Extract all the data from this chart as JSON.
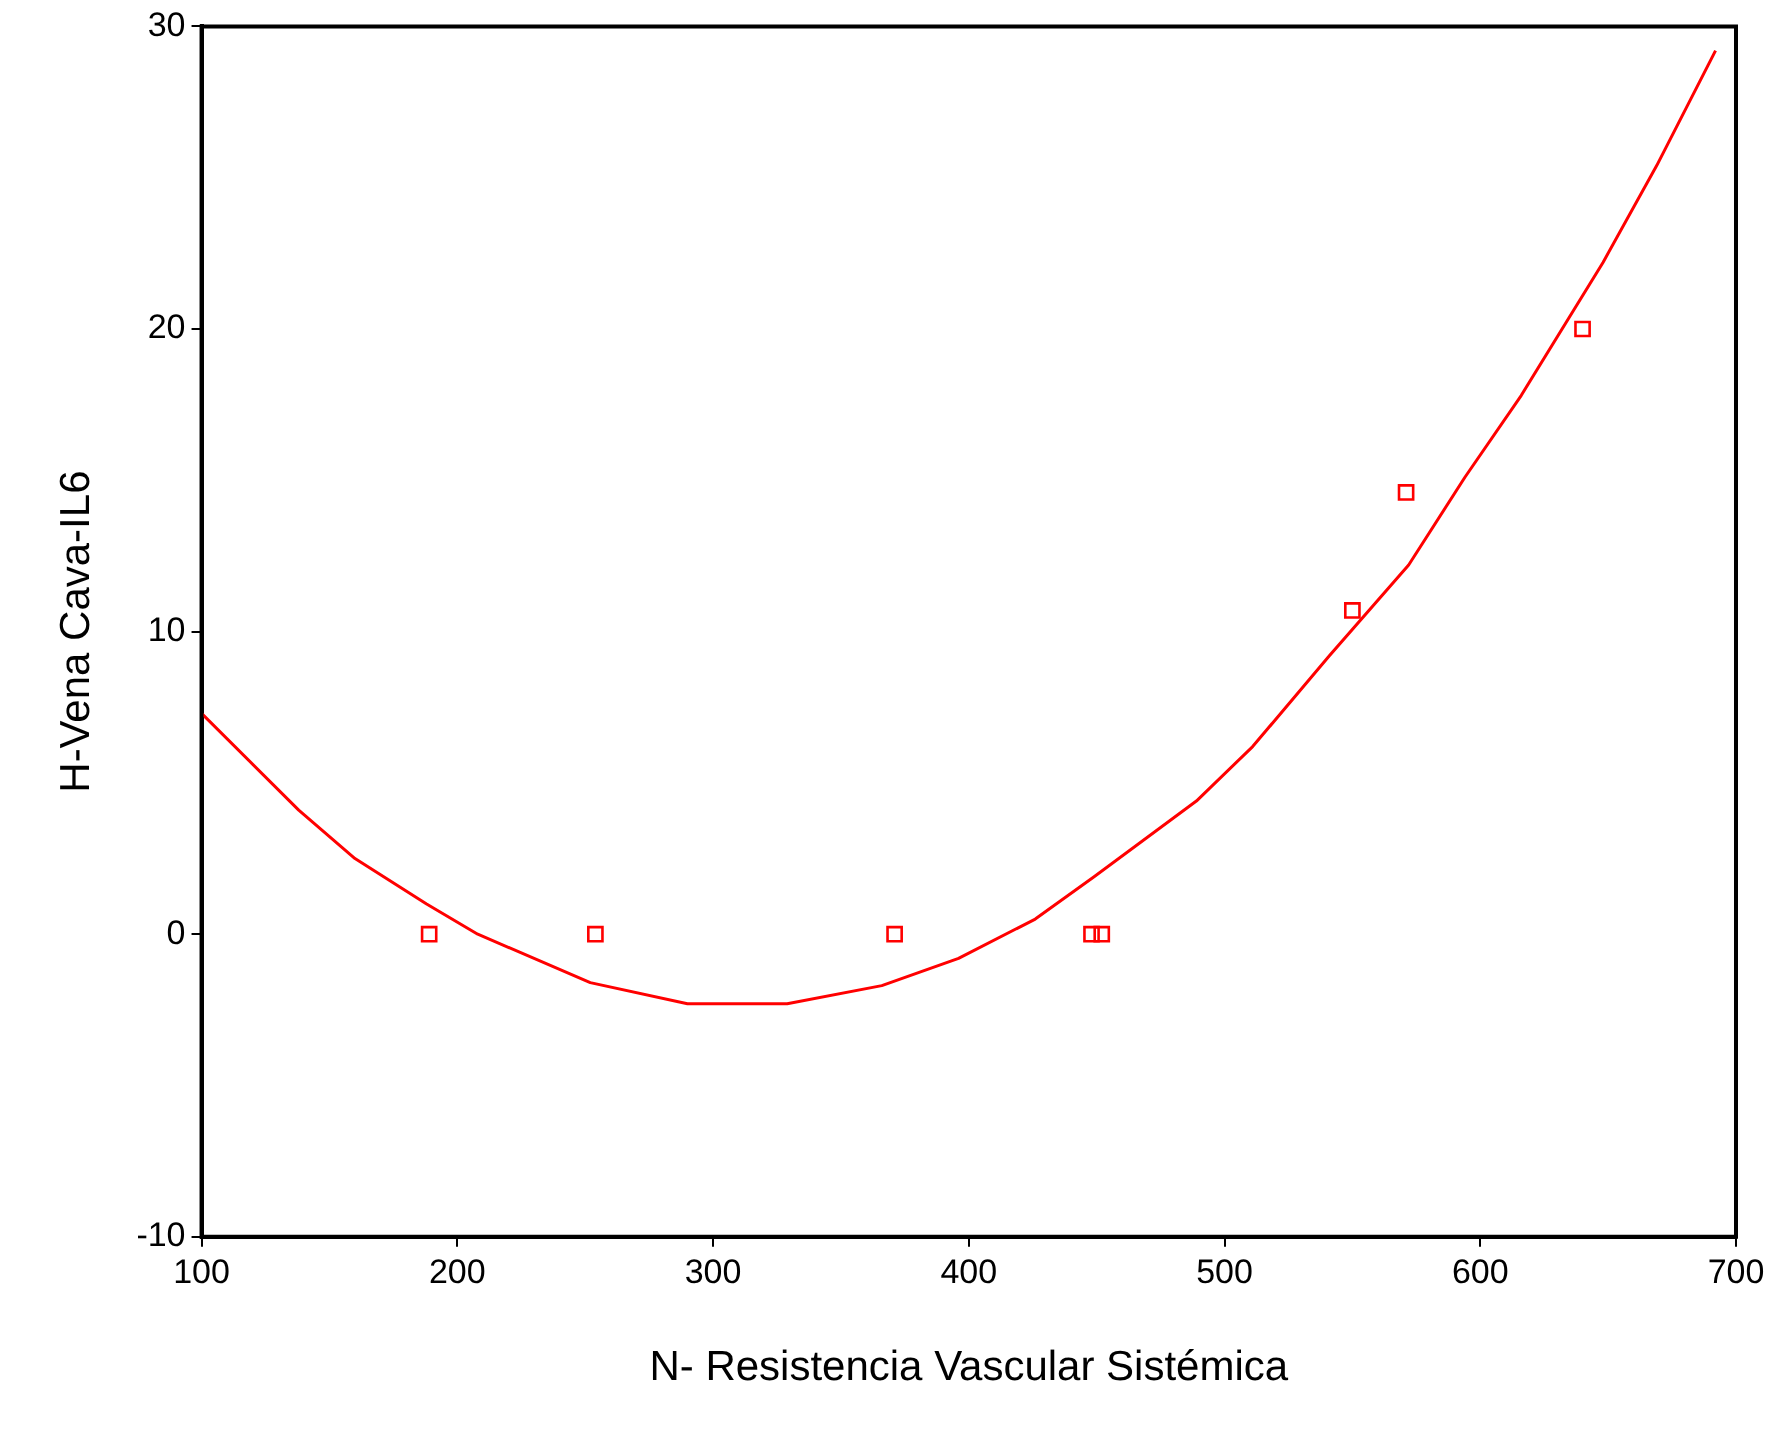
{
  "chart_data": {
    "type": "scatter",
    "xlabel": "N- Resistencia Vascular Sistémica",
    "ylabel": "H-Vena Cava-IL6",
    "xlim": [
      100,
      700
    ],
    "xticks": [
      100,
      200,
      300,
      400,
      500,
      600,
      700
    ],
    "ylim": [
      -10,
      30
    ],
    "yticks": [
      -10,
      0,
      10,
      20,
      30
    ],
    "grid": false,
    "legend": false,
    "series": [
      {
        "color": "#ff0000",
        "marker": "square",
        "x": [
          189,
          254,
          371,
          448,
          452,
          550,
          571,
          640
        ],
        "values": [
          0,
          0,
          0,
          0,
          0,
          10.7,
          14.6,
          20.0
        ]
      },
      {
        "type": "line",
        "color": "#ff0000",
        "marker": "none",
        "line_style": "solid",
        "x": [
          100,
          138,
          160,
          188,
          208,
          252,
          290,
          329,
          366,
          396,
          426,
          449,
          489,
          511,
          541,
          572,
          594,
          616,
          648,
          669,
          692
        ],
        "values": [
          7.3,
          4.1,
          2.5,
          1.0,
          0.0,
          -1.6,
          -2.3,
          -2.3,
          -1.7,
          -0.8,
          0.5,
          1.9,
          4.4,
          6.2,
          9.2,
          12.2,
          15.1,
          17.8,
          22.2,
          25.4,
          29.2
        ]
      }
    ]
  }
}
